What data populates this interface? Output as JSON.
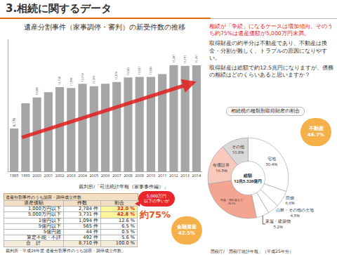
{
  "header": {
    "title": "3.相続に関するデータ"
  },
  "notes": [
    {
      "text": "相続が「争続」になるケースは増加傾向。そのうち約75%は遺産価額が5,000万円未満。",
      "color": "#e0201b"
    },
    {
      "text": "取得財産の約半分は不動産であり、不動産は換金・分割が難しく、トラブルの原因になりやすい。",
      "color": "#333333"
    },
    {
      "text": "取得財産は総額で約12.5兆円になりますが、債務の相続はどのくらいあると思いますか？",
      "color": "#333333"
    }
  ],
  "chart_data": [
    {
      "type": "bar",
      "title": "遺産分割事件（家事調停・審判）の新受件数の推移",
      "categories": [
        "1985",
        "1999",
        "2000",
        "2001",
        "2002",
        "2003",
        "2004",
        "2005",
        "2006",
        "2007",
        "2008",
        "2009",
        "2010",
        "2011",
        "2012",
        "2013",
        "2014"
      ],
      "values": [
        6176,
        9800,
        10645,
        11400,
        12134,
        11999,
        12614,
        12265,
        12600,
        12870,
        13505,
        13597,
        13600,
        14000,
        15281,
        15191,
        15261
      ],
      "value_labels": [
        "6,176",
        null,
        "10,645",
        null,
        "12,134",
        "11,999",
        "12,614",
        "12,265",
        null,
        "12,870",
        "13,505",
        "13,597",
        "13,600",
        null,
        "15,281",
        "15,191",
        "15,261"
      ],
      "color": "#a6a6a6",
      "ylim": [
        0,
        19000
      ],
      "grid": false,
      "data_labels": true,
      "tick_labels": "x",
      "source": "裁判所/「司法統計年報（家事事件編）」"
    },
    {
      "type": "pie",
      "title": "相続税の種類別取得財産の割合",
      "categories": [
        "宅地",
        "田畑",
        "山林・その他の土地",
        "家屋・建築物",
        "現金・預貯金など",
        "有価証券",
        "その他"
      ],
      "values": [
        30.4,
        6.6,
        4.5,
        5.2,
        26.0,
        16.5,
        10.8
      ],
      "value_labels": [
        "30.4%",
        "6.6%",
        "4.5%",
        "5.2%",
        "26.0%",
        "16.5%",
        "10.8%"
      ],
      "colors": [
        "#ffffff",
        "#ffffff",
        "#ffffff",
        "#ffffff",
        "#f3a592",
        "#f8c9bc",
        "#d9d9d9"
      ],
      "center_text": [
        "総額",
        "12兆5,326億円"
      ],
      "data_labels": true,
      "source": "国税庁/「国税庁統計年報」（平成25年分）"
    }
  ],
  "table": {
    "title": "遺産分割事件のうち認容・調停成立件数",
    "columns": [
      "遺産価額",
      "件数",
      "割合"
    ],
    "rows": [
      [
        "1,000万円以下",
        "2,784 件",
        "32.0 %"
      ],
      [
        "5,000万円以下",
        "3,731 件",
        "42.8 %"
      ],
      [
        "1億円以下",
        "1,094 件",
        "12.6 %"
      ],
      [
        "5億円以下",
        "565 件",
        "6.5 %"
      ],
      [
        "5億円超",
        "44 件",
        "0.5 %"
      ],
      [
        "算定不能・不詳",
        "492 件",
        "5.6 %"
      ],
      [
        "合　計",
        "8,710 件",
        "100.0 %"
      ]
    ],
    "source": "裁判所「平成26年度 遺産分割事件のうち認容・調停成立件数」"
  },
  "callout": {
    "lines": [
      "5,000万円",
      "以下の争いが"
    ],
    "emphasis": "約75%"
  },
  "groups": [
    {
      "label": "不動産",
      "text": "46.7%"
    },
    {
      "label": "金融資産",
      "text": "42.5%"
    }
  ]
}
